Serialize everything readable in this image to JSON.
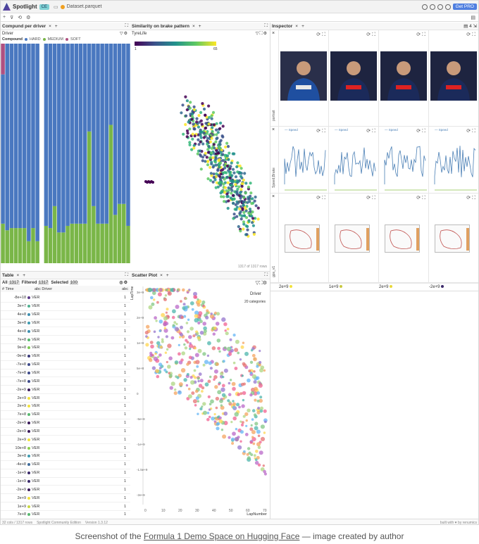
{
  "app": {
    "name": "Spotlight",
    "edition": "CE",
    "file": "Dataset.parquet",
    "get_pro": "Get PRO",
    "toolbar": [
      "+",
      "⊽",
      "⟲",
      "⚙"
    ]
  },
  "panels": {
    "compound": {
      "tab": "Compund per driver",
      "x": "×",
      "plus": "+",
      "subtitle": "Driver",
      "legend_title": "Compound",
      "legend": [
        {
          "name": "HARD",
          "color": "#3b3b3b"
        },
        {
          "name": "MEDIUM",
          "color": "#7ab648"
        },
        {
          "name": "SOFT",
          "color": "#b05080"
        }
      ]
    },
    "similarity": {
      "tab": "Similarity on brake pattern",
      "x": "×",
      "plus": "+",
      "colorbar_title": "TyreLife",
      "colorbar_min": "1",
      "colorbar_max": "65",
      "footer": "1317 of 1317 rows"
    },
    "inspector": {
      "tab": "Inspector",
      "x": "×",
      "plus": "+",
      "count": "4",
      "row_labels": [
        "portrait",
        "Speed,Brake",
        "gps_v1"
      ],
      "legend_speed": "Speed",
      "legend_brake": "B",
      "footer_values": [
        "2e+9",
        "1e+9",
        "2e+9",
        "-2e+9"
      ],
      "footer_colors": [
        "#f2e23a",
        "#c8c840",
        "#e8d838",
        "#3c2a6a"
      ]
    },
    "table": {
      "tab": "Table",
      "x": "×",
      "plus": "+",
      "all_label": "All",
      "all_count": "1317",
      "filtered_label": "Filtered",
      "filtered_count": "1317",
      "selected_label": "Selected",
      "selected_count": "100",
      "col_time": "Time",
      "col_driver": "Driver",
      "col_abc": "abc"
    },
    "scatter": {
      "tab": "Scatter Plot",
      "x": "×",
      "plus": "+",
      "legend_title": "Driver",
      "legend_sub": "20 categories",
      "ylabel": "LapTime",
      "xlabel": "LapNumber",
      "xticks": [
        "0",
        "10",
        "20",
        "30",
        "40",
        "50",
        "60",
        "70"
      ],
      "yticks": [
        "3e+9",
        "2e+9",
        "1e+9",
        "5e+8",
        "0",
        "-5e+8",
        "-1e+9",
        "-1.5e+9",
        "-2e+9"
      ]
    }
  },
  "table_rows": [
    {
      "time": "-8e+18",
      "driver": "VER",
      "val": "1",
      "color": "#5b3a8a"
    },
    {
      "time": "3e+7",
      "driver": "VER",
      "val": "1",
      "color": "#4fb08f"
    },
    {
      "time": "4e+8",
      "driver": "VER",
      "val": "1",
      "color": "#3d8fb0"
    },
    {
      "time": "3e+8",
      "driver": "VER",
      "val": "1",
      "color": "#3e9bb0"
    },
    {
      "time": "4e+8",
      "driver": "VER",
      "val": "1",
      "color": "#3d8fb0"
    },
    {
      "time": "7e+8",
      "driver": "VER",
      "val": "1",
      "color": "#56b96e"
    },
    {
      "time": "9e+8",
      "driver": "VER",
      "val": "1",
      "color": "#7ccb55"
    },
    {
      "time": "-9e+8",
      "driver": "VER",
      "val": "1",
      "color": "#3a3a7a"
    },
    {
      "time": "-7e+8",
      "driver": "VER",
      "val": "1",
      "color": "#3d4a8a"
    },
    {
      "time": "-7e+8",
      "driver": "VER",
      "val": "1",
      "color": "#3d4a8a"
    },
    {
      "time": "-7e+8",
      "driver": "VER",
      "val": "1",
      "color": "#3d4a8a"
    },
    {
      "time": "-2e+9",
      "driver": "VER",
      "val": "1",
      "color": "#3a1a5a"
    },
    {
      "time": "2e+9",
      "driver": "VER",
      "val": "1",
      "color": "#f2e23a"
    },
    {
      "time": "2e+9",
      "driver": "VER",
      "val": "1",
      "color": "#f2e23a"
    },
    {
      "time": "7e+8",
      "driver": "VER",
      "val": "1",
      "color": "#56b96e"
    },
    {
      "time": "-2e+9",
      "driver": "VER",
      "val": "1",
      "color": "#3a1a5a"
    },
    {
      "time": "-2e+9",
      "driver": "VER",
      "val": "1",
      "color": "#3a1a5a"
    },
    {
      "time": "2e+9",
      "driver": "VER",
      "val": "1",
      "color": "#f2e23a"
    },
    {
      "time": "10e+8",
      "driver": "VER",
      "val": "1",
      "color": "#8cd04a"
    },
    {
      "time": "3e+8",
      "driver": "VER",
      "val": "1",
      "color": "#3e9bb0"
    },
    {
      "time": "-4e+8",
      "driver": "VER",
      "val": "1",
      "color": "#3d6a9a"
    },
    {
      "time": "-1e+9",
      "driver": "VER",
      "val": "1",
      "color": "#3a2a6a"
    },
    {
      "time": "-1e+9",
      "driver": "VER",
      "val": "1",
      "color": "#3a2a6a"
    },
    {
      "time": "-2e+9",
      "driver": "VER",
      "val": "1",
      "color": "#3a1a5a"
    },
    {
      "time": "2e+9",
      "driver": "VER",
      "val": "1",
      "color": "#f2e23a"
    },
    {
      "time": "1e+9",
      "driver": "VER",
      "val": "1",
      "color": "#c8d840"
    },
    {
      "time": "7e+8",
      "driver": "VER",
      "val": "1",
      "color": "#56b96e"
    }
  ],
  "footer": {
    "rows": "32 cols / 1317 rows",
    "edition": "Spotlight Community Edition",
    "version": "Version 1.3.12",
    "built": "built with ♥ by renumics"
  },
  "caption": {
    "prefix": "Screenshot of the ",
    "link": "Formula 1 Demo Space on Hugging Face",
    "suffix": " — image created by author"
  },
  "colors": {
    "hard": "#4a78c0",
    "medium": "#7ab648",
    "soft": "#b05080",
    "accent": "#4f7fe0"
  },
  "chart_data": [
    {
      "type": "bar",
      "title": "Compund per driver",
      "note": "stacked 100% bars per driver",
      "stack_order": [
        "MEDIUM",
        "HARD",
        "SOFT"
      ],
      "series": [
        {
          "name": "MEDIUM",
          "values": [
            0.18,
            0.15,
            0.16,
            0.16,
            0.16,
            0.16,
            0.1,
            0.16,
            0.1,
            0.0,
            0.17,
            0.16,
            0.26,
            0.14,
            0.14,
            0.17,
            0.18,
            0.18,
            0.18,
            0.18,
            0.6,
            0.26,
            0.18,
            0.18,
            0.18,
            0.63,
            0.22,
            0.27,
            0.27,
            0.17
          ]
        },
        {
          "name": "HARD",
          "values": [
            0.68,
            0.85,
            0.84,
            0.84,
            0.84,
            0.84,
            0.9,
            0.84,
            0.9,
            0.0,
            0.83,
            0.84,
            0.74,
            0.86,
            0.86,
            0.83,
            0.82,
            0.82,
            0.82,
            0.82,
            0.4,
            0.74,
            0.82,
            0.82,
            0.82,
            0.37,
            0.78,
            0.73,
            0.73,
            0.83
          ]
        },
        {
          "name": "SOFT",
          "values": [
            0.14,
            0,
            0,
            0,
            0,
            0,
            0,
            0,
            0,
            0,
            0,
            0,
            0,
            0,
            0,
            0,
            0,
            0,
            0,
            0,
            0,
            0,
            0,
            0,
            0,
            0,
            0,
            0,
            0,
            0
          ]
        }
      ]
    },
    {
      "type": "scatter",
      "title": "Scatter Plot",
      "xlabel": "LapNumber",
      "ylabel": "LapTime",
      "xlim": [
        0,
        72
      ]
    }
  ]
}
